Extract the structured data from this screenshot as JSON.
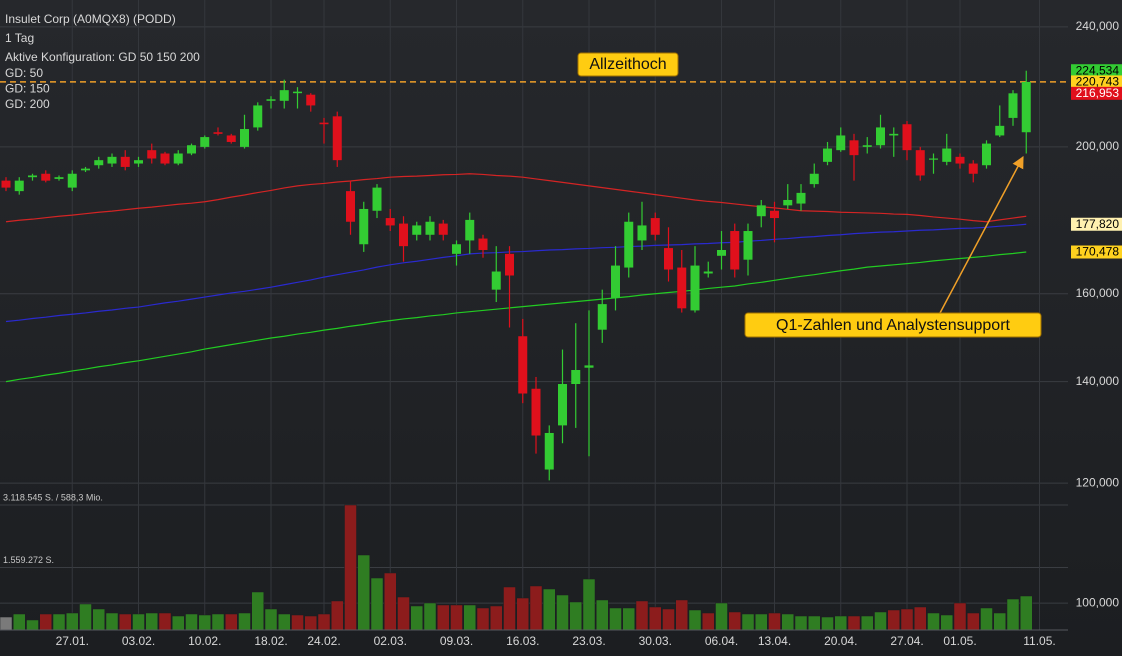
{
  "chart_data": {
    "type": "candlestick",
    "title": "Insulet Corp (A0MQX8) (PODD)",
    "subtitle": "1 Tag",
    "config_label": "Aktive Konfiguration: GD 50 150 200",
    "categories": [
      null,
      null,
      null,
      null,
      null,
      "27.01.",
      null,
      null,
      null,
      null,
      "03.02.",
      null,
      null,
      null,
      null,
      "10.02.",
      null,
      null,
      null,
      null,
      "18.02.",
      null,
      null,
      null,
      "24.02.",
      null,
      null,
      null,
      null,
      "02.03.",
      null,
      null,
      null,
      null,
      "09.03.",
      null,
      null,
      null,
      null,
      "16.03.",
      null,
      null,
      null,
      null,
      "23.03.",
      null,
      null,
      null,
      null,
      "30.03.",
      null,
      null,
      null,
      null,
      "06.04.",
      null,
      null,
      null,
      "13.04.",
      null,
      null,
      null,
      null,
      "20.04.",
      null,
      null,
      null,
      null,
      "27.04.",
      null,
      null,
      null,
      "01.05.",
      null,
      null,
      null,
      null,
      null,
      "11.05."
    ],
    "open": [
      190,
      187,
      191,
      192,
      190.5,
      188,
      193,
      194.5,
      195,
      197,
      195,
      199,
      198,
      195,
      198,
      200,
      204.5,
      203.5,
      200,
      206,
      214.5,
      214.5,
      217,
      216.5,
      207.5,
      209.5,
      187,
      172.5,
      181.5,
      179.5,
      178,
      175,
      175,
      178,
      170,
      173.5,
      174,
      161,
      170,
      150,
      138.5,
      122.5,
      131,
      139.5,
      143,
      151.5,
      159,
      166.5,
      173.5,
      179.5,
      171.5,
      166.5,
      156,
      165,
      169.5,
      176,
      168.5,
      180,
      181.5,
      183,
      183.5,
      189,
      195.5,
      199,
      202,
      200,
      200.5,
      203.5,
      207,
      199,
      196.5,
      195.5,
      197,
      195,
      194.5,
      203.5,
      209,
      204.5,
      null
    ],
    "high": [
      191,
      191,
      192,
      193,
      191.5,
      193,
      194,
      197,
      198,
      199,
      197,
      201,
      198.5,
      199,
      201,
      203.5,
      206,
      204,
      210,
      214,
      216,
      221.5,
      219,
      217,
      209,
      211,
      190,
      184,
      189,
      182,
      180,
      178.5,
      180,
      179,
      173.5,
      181,
      175,
      172,
      172,
      154,
      141,
      131,
      147,
      153,
      156,
      161,
      172,
      181,
      184,
      181,
      177,
      171,
      172,
      168,
      176,
      178,
      178,
      184.5,
      184,
      189,
      189,
      195,
      201.5,
      206,
      204,
      203,
      210,
      206,
      208,
      200,
      198,
      204,
      198,
      196,
      202,
      213,
      218,
      224.534,
      null
    ],
    "low": [
      187,
      186,
      190,
      189.5,
      190,
      187,
      192.5,
      193.5,
      194,
      193,
      194,
      195,
      194.5,
      194.5,
      197.5,
      199.5,
      203.5,
      201,
      199.5,
      205,
      212,
      212,
      212,
      211,
      201,
      194,
      175,
      170.5,
      179.5,
      176,
      168,
      173.5,
      173.5,
      173.5,
      167,
      170,
      169,
      158,
      152,
      135.5,
      125.5,
      120.5,
      127.5,
      130.5,
      125,
      148.5,
      156,
      164,
      171,
      173.5,
      163,
      155.5,
      155.5,
      164,
      166,
      164,
      164.5,
      177,
      173,
      182,
      181.5,
      188,
      194.5,
      198.5,
      190,
      198,
      199.5,
      197,
      196,
      190,
      192,
      194.5,
      193.5,
      189.5,
      193.5,
      203,
      206.5,
      198,
      null
    ],
    "close": [
      188,
      190,
      191.5,
      190,
      191,
      192,
      193.5,
      196,
      197,
      194,
      196,
      196.5,
      195,
      198,
      200.5,
      203,
      204,
      201.5,
      205.5,
      213,
      215,
      218,
      217.5,
      213,
      207,
      196,
      178.5,
      182,
      188,
      177.5,
      172,
      177.5,
      178.5,
      175,
      172.5,
      179,
      171,
      165.5,
      164.5,
      137.5,
      129,
      129.5,
      139.5,
      142.5,
      143.5,
      157.5,
      167,
      178.5,
      177.5,
      175,
      166,
      156.5,
      167,
      165.5,
      171,
      166,
      176,
      183,
      179.5,
      184.5,
      186.5,
      192,
      199.5,
      203.5,
      197.5,
      200.5,
      206,
      204,
      199,
      191.5,
      196.5,
      199.5,
      195,
      192,
      201,
      206.5,
      216.953,
      220.743,
      null
    ],
    "up_color": "#33cc33",
    "down_color": "#e0101c",
    "series": [
      {
        "name": "GD: 50",
        "color": "#d42424",
        "values": [
          178.5,
          178.9,
          179.2,
          179.6,
          180.0,
          180.3,
          180.7,
          181.1,
          181.4,
          181.8,
          182.2,
          182.5,
          182.9,
          183.3,
          183.6,
          184,
          184.6,
          185.3,
          185.9,
          186.6,
          187.2,
          187.9,
          188.5,
          188.9,
          189.2,
          189.6,
          189.9,
          190.3,
          190.6,
          191,
          191.2,
          191.3,
          191.5,
          191.7,
          191.8,
          192,
          191.8,
          191.5,
          191.3,
          191,
          190.5,
          190,
          189.5,
          189,
          188.5,
          188,
          187.5,
          187,
          186.5,
          186,
          185.5,
          185,
          184.5,
          184.1,
          183.8,
          183.4,
          183,
          182.6,
          182.3,
          181.9,
          181.5,
          181.4,
          181.3,
          181.1,
          181,
          180.9,
          180.8,
          180.6,
          180.5,
          180.2,
          179.8,
          179.5,
          179.2,
          178.8,
          178.5,
          179,
          179.5,
          180,
          null
        ]
      },
      {
        "name": "GD: 150",
        "color": "#2a2ad0",
        "values": [
          153.4,
          153.7,
          154.1,
          154.4,
          154.8,
          155.1,
          155.4,
          155.8,
          156.1,
          156.5,
          156.8,
          157.3,
          157.8,
          158.2,
          158.7,
          159.2,
          159.7,
          160.2,
          160.6,
          161.1,
          161.6,
          162.2,
          162.8,
          163.4,
          164.1,
          164.7,
          165.3,
          165.9,
          166.6,
          167.2,
          167.7,
          168.1,
          168.6,
          169.1,
          169.5,
          170,
          170.2,
          170.3,
          170.5,
          170.6,
          170.8,
          171,
          171.1,
          171.3,
          171.4,
          171.6,
          171.7,
          171.9,
          172,
          172.2,
          172.3,
          172.4,
          172.6,
          172.7,
          172.9,
          173,
          173.3,
          173.5,
          173.8,
          174,
          174.3,
          174.5,
          174.8,
          175,
          175.3,
          175.5,
          175.7,
          175.8,
          176,
          176.2,
          176.3,
          176.5,
          176.7,
          176.8,
          177,
          177.3,
          177.5,
          177.82,
          null
        ]
      },
      {
        "name": "GD: 200",
        "color": "#22cc22",
        "values": [
          140,
          140.5,
          140.9,
          141.4,
          141.8,
          142.3,
          142.7,
          143.2,
          143.6,
          144.1,
          144.5,
          145,
          145.5,
          146,
          146.5,
          147.1,
          147.6,
          148.1,
          148.6,
          149.1,
          149.6,
          150,
          150.5,
          150.9,
          151.4,
          151.8,
          152.3,
          152.7,
          153.2,
          153.6,
          154,
          154.3,
          154.7,
          155,
          155.4,
          155.7,
          156,
          156.3,
          156.6,
          156.9,
          157.2,
          157.5,
          157.8,
          158.1,
          158.4,
          158.7,
          159,
          159.3,
          159.7,
          160,
          160.3,
          160.6,
          160.9,
          161.3,
          161.6,
          161.9,
          162.4,
          162.8,
          163.3,
          163.8,
          164.3,
          164.7,
          165.2,
          165.7,
          166.1,
          166.6,
          166.9,
          167.2,
          167.5,
          167.8,
          168.2,
          168.5,
          168.8,
          169.1,
          169.4,
          169.8,
          170.1,
          170.478,
          null
        ]
      }
    ],
    "volume": [
      324000,
      399000,
      250000,
      399000,
      399000,
      424000,
      649000,
      524000,
      424000,
      399000,
      399000,
      424000,
      424000,
      349000,
      399000,
      374000,
      399000,
      399000,
      424000,
      948000,
      524000,
      399000,
      374000,
      349000,
      399000,
      724000,
      3118545,
      1871000,
      1297000,
      1422000,
      823000,
      599000,
      674000,
      624000,
      624000,
      624000,
      549000,
      599000,
      1073000,
      798000,
      1098000,
      1023000,
      873000,
      699000,
      1272000,
      749000,
      549000,
      549000,
      724000,
      574000,
      524000,
      749000,
      499000,
      424000,
      674000,
      449000,
      399000,
      399000,
      424000,
      399000,
      349000,
      349000,
      324000,
      349000,
      349000,
      349000,
      449000,
      499000,
      524000,
      574000,
      424000,
      374000,
      674000,
      424000,
      549000,
      424000,
      773000,
      848000,
      null
    ],
    "volume_up_color": "#2f7d22",
    "volume_down_color": "#8c1c1c",
    "volume_neutral_color": "#7a7a7a",
    "ylim": [
      96,
      250
    ],
    "log_y": true,
    "yticks": [
      {
        "value": 240,
        "label": "240,000"
      },
      {
        "value": 200,
        "label": "200,000"
      },
      {
        "value": 160,
        "label": "160,000"
      },
      {
        "value": 140,
        "label": "140,000"
      },
      {
        "value": 120,
        "label": "120,000"
      },
      {
        "value": 100,
        "label": "100,000"
      }
    ],
    "vlim": [
      0,
      3118545
    ],
    "vticks": [
      {
        "value": 3118545,
        "label": "3.118.545 S. / 588,3 Mio."
      },
      {
        "value": 1559272,
        "label": "1.559.272 S."
      }
    ],
    "markers": [
      {
        "value": 224.534,
        "label": "224,534",
        "color": "#33cc33",
        "text_color": "#000000"
      },
      {
        "value": 220.743,
        "label": "220,743",
        "color": "#ffd21f",
        "text_color": "#000000"
      },
      {
        "value": 216.953,
        "label": "216,953",
        "color": "#e0101c",
        "text_color": "#ffffff"
      },
      {
        "value": 177.82,
        "label": "177,820",
        "color": "#fff1b0",
        "text_color": "#000000"
      },
      {
        "value": 170.478,
        "label": "170,478",
        "color": "#ffd21f",
        "text_color": "#000000"
      }
    ],
    "reference_line": {
      "value": 220.743,
      "color": "#f0a028"
    },
    "annotations": [
      "Allzeithoch",
      "Q1-Zahlen und Analystensupport"
    ],
    "grid": true
  }
}
